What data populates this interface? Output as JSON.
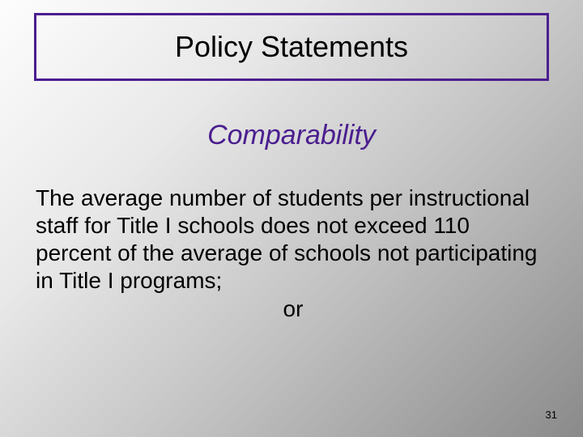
{
  "slide": {
    "title_box": {
      "border_color": "#4b1e8f",
      "title": "Policy Statements",
      "title_color": "#000000",
      "title_fontsize": 36
    },
    "subtitle": {
      "text": "Comparability",
      "color": "#4b1e8f",
      "fontsize": 34,
      "font_style": "italic"
    },
    "body": {
      "text": "The average number of students per instructional staff for Title I schools does not exceed 110 percent of the average of schools not participating in Title I programs;",
      "or_text": "or",
      "color": "#000000",
      "fontsize": 28
    },
    "page_number": {
      "value": "31",
      "color": "#000000",
      "fontsize": 13
    },
    "background": {
      "gradient_start": "#fdfdfd",
      "gradient_end": "#8a8a8a"
    }
  }
}
